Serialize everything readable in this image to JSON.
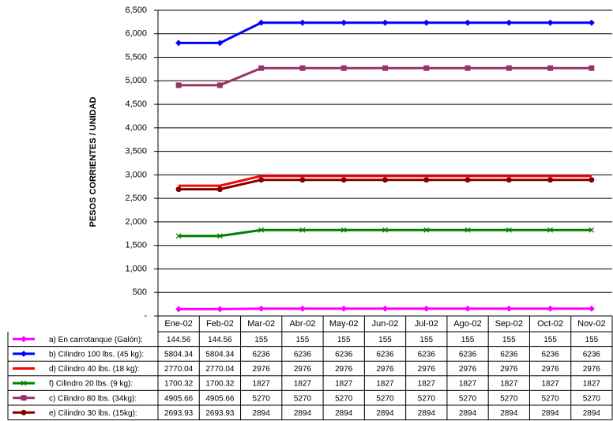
{
  "chart_data": {
    "type": "line",
    "y_label": "PESOS CORRIENTES / UNIDAD",
    "categories": [
      "Ene-02",
      "Feb-02",
      "Mar-02",
      "Abr-02",
      "May-02",
      "Jun-02",
      "Jul-02",
      "Ago-02",
      "Sep-02",
      "Oct-02",
      "Nov-02"
    ],
    "series": [
      {
        "name": "a) En carrotanque (Galón):",
        "color": "#ff00ff",
        "marker": "diamond",
        "values": [
          144.56,
          144.56,
          155,
          155,
          155,
          155,
          155,
          155,
          155,
          155,
          155
        ]
      },
      {
        "name": "b) Cilindro 100 lbs. (45 kg):",
        "color": "#0000ff",
        "marker": "diamond",
        "values": [
          5804.34,
          5804.34,
          6236,
          6236,
          6236,
          6236,
          6236,
          6236,
          6236,
          6236,
          6236
        ]
      },
      {
        "name": "d) Cilindro 40 lbs. (18 kg):",
        "color": "#ff0000",
        "marker": "none",
        "values": [
          2770.04,
          2770.04,
          2976,
          2976,
          2976,
          2976,
          2976,
          2976,
          2976,
          2976,
          2976
        ]
      },
      {
        "name": "f) Cilindro 20 lbs. (9 kg):",
        "color": "#008000",
        "marker": "x",
        "values": [
          1700.32,
          1700.32,
          1827,
          1827,
          1827,
          1827,
          1827,
          1827,
          1827,
          1827,
          1827
        ]
      },
      {
        "name": "c) Cilindro 80 lbs. (34kg):",
        "color": "#993366",
        "marker": "square",
        "values": [
          4905.66,
          4905.66,
          5270,
          5270,
          5270,
          5270,
          5270,
          5270,
          5270,
          5270,
          5270
        ]
      },
      {
        "name": "e) Cilindro 30 lbs. (15kg):",
        "color": "#800000",
        "marker": "circle",
        "values": [
          2693.93,
          2693.93,
          2894,
          2894,
          2894,
          2894,
          2894,
          2894,
          2894,
          2894,
          2894
        ]
      }
    ],
    "ylim": [
      0,
      6500
    ],
    "yticks": [
      {
        "value": 0,
        "label": "-"
      },
      500,
      {
        "value": 1000,
        "label": "1,000"
      },
      {
        "value": 1500,
        "label": "1,500"
      },
      {
        "value": 2000,
        "label": "2,000"
      },
      {
        "value": 2500,
        "label": "2,500"
      },
      {
        "value": 3000,
        "label": "3,000"
      },
      {
        "value": 3500,
        "label": "3,500"
      },
      {
        "value": 4000,
        "label": "4,000"
      },
      {
        "value": 4500,
        "label": "4,500"
      },
      {
        "value": 5000,
        "label": "5,000"
      },
      {
        "value": 5500,
        "label": "5,500"
      },
      {
        "value": 6000,
        "label": "6,000"
      },
      {
        "value": 6500,
        "label": "6,500"
      }
    ],
    "grid": true
  }
}
